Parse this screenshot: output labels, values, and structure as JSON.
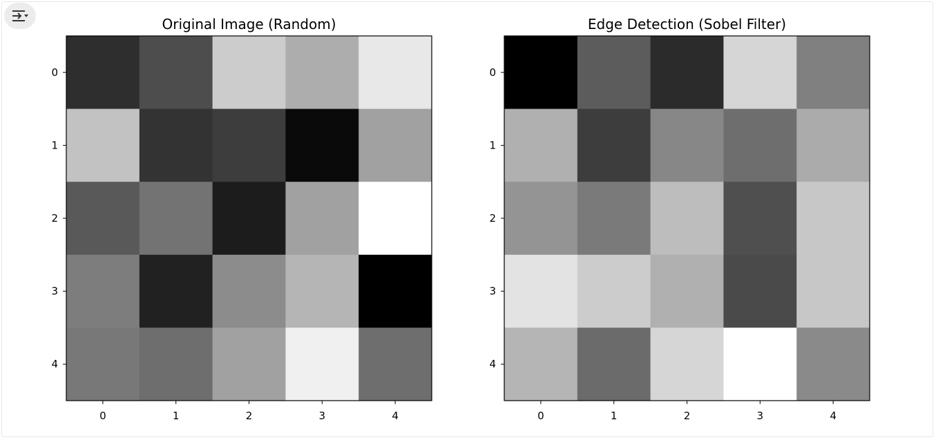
{
  "toolbar": {
    "output_toggle_icon": "output-collapse-icon"
  },
  "chart_data": [
    {
      "type": "heatmap",
      "title": "Original Image (Random)",
      "colormap": "gray",
      "x_ticks": [
        "0",
        "1",
        "2",
        "3",
        "4"
      ],
      "y_ticks": [
        "0",
        "1",
        "2",
        "3",
        "4"
      ],
      "values": [
        [
          0.18,
          0.3,
          0.8,
          0.68,
          0.91
        ],
        [
          0.76,
          0.2,
          0.24,
          0.04,
          0.63
        ],
        [
          0.35,
          0.45,
          0.11,
          0.63,
          1.0
        ],
        [
          0.49,
          0.13,
          0.55,
          0.71,
          0.0
        ],
        [
          0.47,
          0.43,
          0.63,
          0.94,
          0.43
        ]
      ]
    },
    {
      "type": "heatmap",
      "title": "Edge Detection (Sobel Filter)",
      "colormap": "gray",
      "x_ticks": [
        "0",
        "1",
        "2",
        "3",
        "4"
      ],
      "y_ticks": [
        "0",
        "1",
        "2",
        "3",
        "4"
      ],
      "values": [
        [
          0.0,
          0.36,
          0.17,
          0.84,
          0.5
        ],
        [
          0.69,
          0.24,
          0.53,
          0.43,
          0.67
        ],
        [
          0.58,
          0.48,
          0.74,
          0.31,
          0.78
        ],
        [
          0.89,
          0.8,
          0.69,
          0.29,
          0.78
        ],
        [
          0.71,
          0.42,
          0.84,
          1.0,
          0.54
        ]
      ]
    }
  ]
}
